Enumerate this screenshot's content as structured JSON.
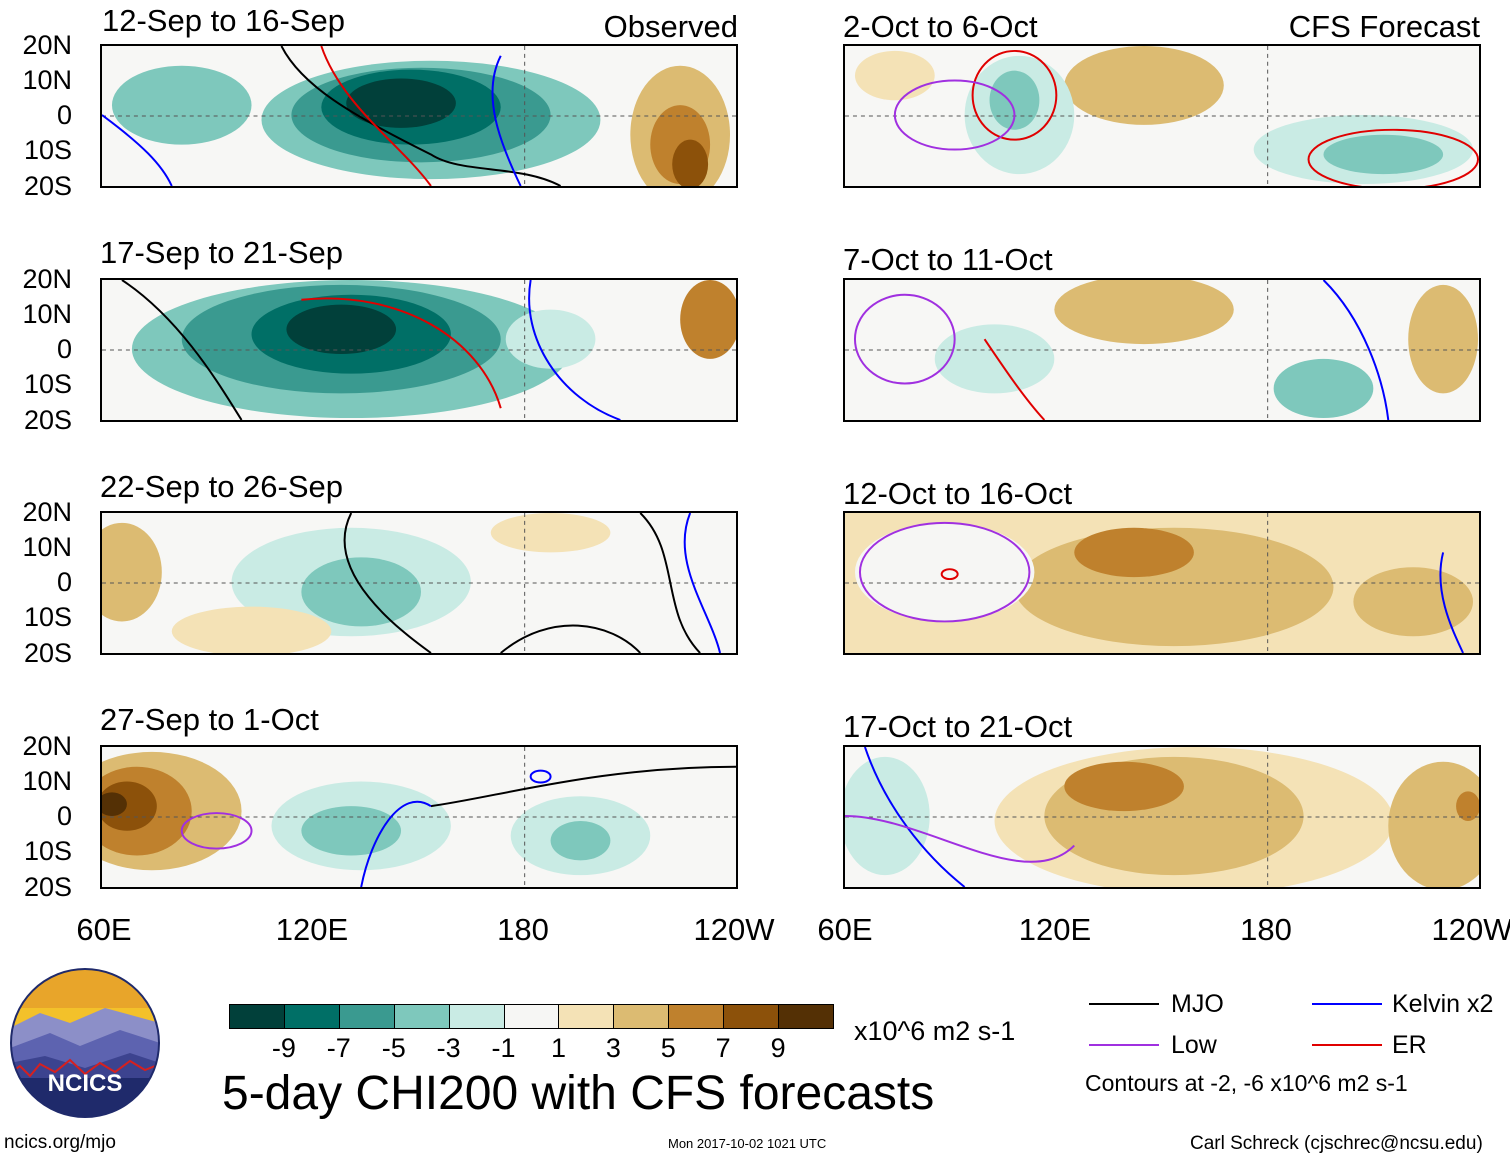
{
  "chart_data": {
    "type": "heatmap",
    "title": "5-day CHI200 with CFS forecasts",
    "variable": "CHI200",
    "units": "x10^6 m2 s-1",
    "x_ticks": [
      "60E",
      "120E",
      "180",
      "120W"
    ],
    "y_ticks": [
      "20N",
      "10N",
      "0",
      "10S",
      "20S"
    ],
    "x_range": [
      "60E",
      "120W"
    ],
    "y_range": [
      "20S",
      "20N"
    ],
    "colorbar": {
      "levels": [
        "-9",
        "-7",
        "-5",
        "-3",
        "-1",
        "1",
        "3",
        "5",
        "7",
        "9"
      ],
      "colors": [
        "#01403a",
        "#006f66",
        "#3a9a90",
        "#7ec8bc",
        "#c9ebe4",
        "#f6f6f4",
        "#f4e2b6",
        "#dcbb72",
        "#bf812d",
        "#8c510a",
        "#543005"
      ]
    },
    "column_headers": {
      "left": "Observed",
      "right": "CFS Forecast"
    },
    "panels": [
      {
        "period": "12-Sep to 16-Sep",
        "source": "Observed"
      },
      {
        "period": "17-Sep to 21-Sep",
        "source": "Observed"
      },
      {
        "period": "22-Sep to 26-Sep",
        "source": "Observed"
      },
      {
        "period": "27-Sep to 1-Oct",
        "source": "Observed"
      },
      {
        "period": "2-Oct to 6-Oct",
        "source": "CFS Forecast"
      },
      {
        "period": "7-Oct to 11-Oct",
        "source": "CFS Forecast"
      },
      {
        "period": "12-Oct to 16-Oct",
        "source": "CFS Forecast"
      },
      {
        "period": "17-Oct to 21-Oct",
        "source": "CFS Forecast"
      }
    ],
    "legend": [
      {
        "name": "MJO",
        "color": "#000000"
      },
      {
        "name": "Kelvin x2",
        "color": "#0000ff"
      },
      {
        "name": "Low",
        "color": "#a030e0"
      },
      {
        "name": "ER",
        "color": "#e00000"
      }
    ],
    "contour_note": "Contours at -2, -6 x10^6 m2 s-1"
  },
  "logo": {
    "text": "NCICS"
  },
  "footer": {
    "url": "ncics.org/mjo",
    "timestamp": "Mon 2017-10-02 1021 UTC",
    "credit": "Carl Schreck (cjschrec@ncsu.edu)"
  }
}
